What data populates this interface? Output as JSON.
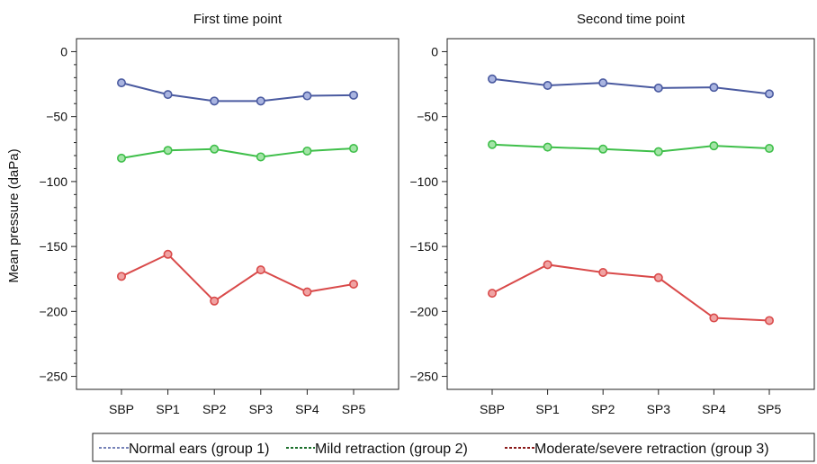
{
  "ylabel": "Mean pressure (daPa)",
  "chart_data": [
    {
      "type": "line",
      "title": "First time point",
      "categories": [
        "SBP",
        "SP1",
        "SP2",
        "SP3",
        "SP4",
        "SP5"
      ],
      "ylim": [
        -260,
        10
      ],
      "yticks": [
        0,
        -50,
        -100,
        -150,
        -200,
        -250
      ],
      "ytick_labels": [
        "0",
        "−50",
        "−100",
        "−150",
        "−200",
        "−250"
      ],
      "series": [
        {
          "name": "Normal ears (group 1)",
          "color": "#4a5aa0",
          "fill": "#a9b4e0",
          "values": [
            -24,
            -33,
            -38,
            -38,
            -34,
            -33.5
          ]
        },
        {
          "name": "Mild retraction (group 2)",
          "color": "#3fbf4a",
          "fill": "#a3e4a6",
          "values": [
            -82,
            -76,
            -75,
            -81,
            -76.5,
            -74.5
          ]
        },
        {
          "name": "Moderate/severe retraction (group 3)",
          "color": "#d94a4a",
          "fill": "#f0a3a3",
          "values": [
            -173,
            -156,
            -192,
            -168,
            -185,
            -179
          ]
        }
      ]
    },
    {
      "type": "line",
      "title": "Second time point",
      "categories": [
        "SBP",
        "SP1",
        "SP2",
        "SP3",
        "SP4",
        "SP5"
      ],
      "ylim": [
        -260,
        10
      ],
      "yticks": [
        0,
        -50,
        -100,
        -150,
        -200,
        -250
      ],
      "ytick_labels": [
        "0",
        "−50",
        "−100",
        "−150",
        "−200",
        "−250"
      ],
      "series": [
        {
          "name": "Normal ears (group 1)",
          "color": "#4a5aa0",
          "fill": "#a9b4e0",
          "values": [
            -21,
            -26,
            -24,
            -28,
            -27.5,
            -32.5
          ]
        },
        {
          "name": "Mild retraction (group 2)",
          "color": "#3fbf4a",
          "fill": "#a3e4a6",
          "values": [
            -71.5,
            -73.5,
            -75,
            -77,
            -72.5,
            -74.5
          ]
        },
        {
          "name": "Moderate/severe retraction (group 3)",
          "color": "#d94a4a",
          "fill": "#f0a3a3",
          "values": [
            -186,
            -164,
            -170,
            -174,
            -205,
            -207
          ]
        }
      ]
    }
  ],
  "legend": {
    "placement": "bottom",
    "items": [
      {
        "label": "Normal ears (group 1)",
        "color": "#4a5aa0"
      },
      {
        "label": "Mild retraction (group 2)",
        "color": "#1a6e2a"
      },
      {
        "label": "Moderate/severe retraction (group 3)",
        "color": "#8a1a1a"
      }
    ]
  }
}
